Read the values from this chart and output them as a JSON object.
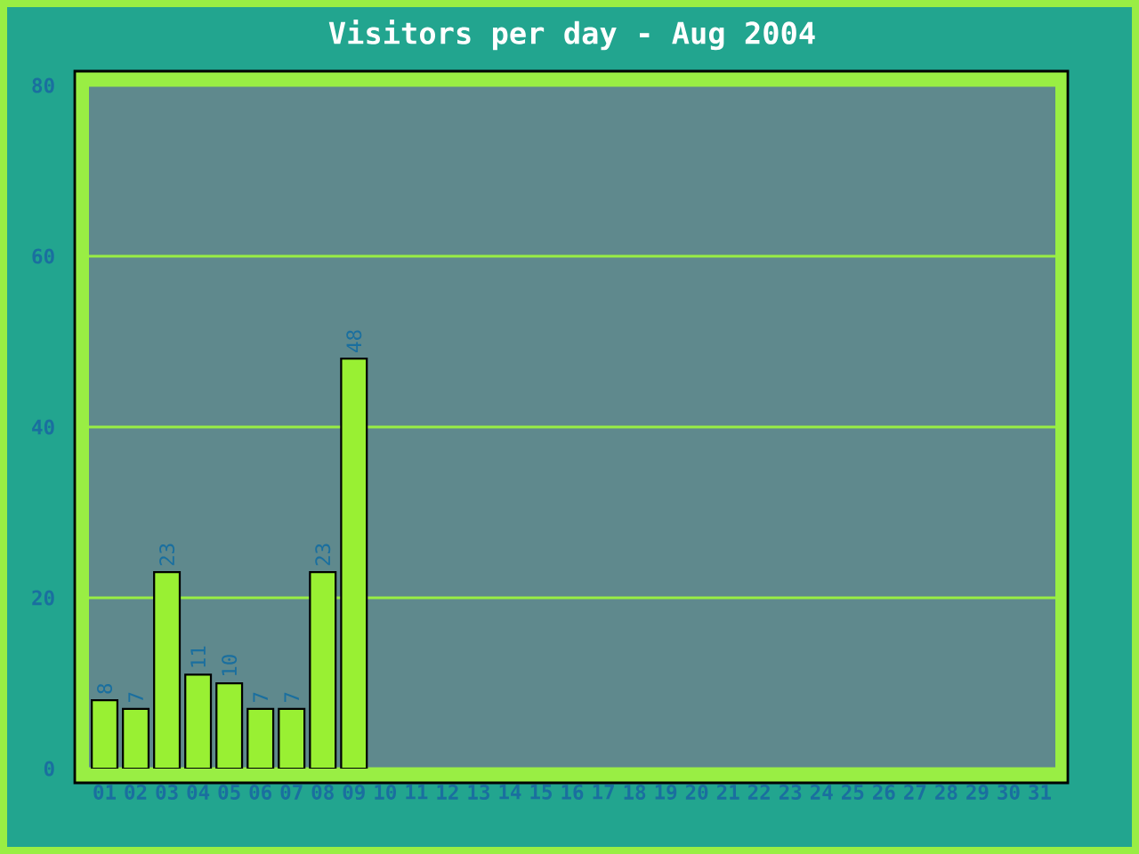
{
  "chart_data": {
    "type": "bar",
    "title": "Visitors per day - Aug 2004",
    "categories": [
      "01",
      "02",
      "03",
      "04",
      "05",
      "06",
      "07",
      "08",
      "09",
      "10",
      "11",
      "12",
      "13",
      "14",
      "15",
      "16",
      "17",
      "18",
      "19",
      "20",
      "21",
      "22",
      "23",
      "24",
      "25",
      "26",
      "27",
      "28",
      "29",
      "30",
      "31"
    ],
    "values": [
      8,
      7,
      23,
      11,
      10,
      7,
      7,
      23,
      48,
      null,
      null,
      null,
      null,
      null,
      null,
      null,
      null,
      null,
      null,
      null,
      null,
      null,
      null,
      null,
      null,
      null,
      null,
      null,
      null,
      null,
      null
    ],
    "value_labels": [
      "8",
      "7",
      "23",
      "11",
      "10",
      "7",
      "7",
      "23",
      "48",
      null,
      null,
      null,
      null,
      null,
      null,
      null,
      null,
      null,
      null,
      null,
      null,
      null,
      null,
      null,
      null,
      null,
      null,
      null,
      null,
      null,
      null
    ],
    "color": "#99f033",
    "ylim": [
      0,
      80
    ],
    "yticks": [
      0,
      20,
      40,
      60,
      80
    ],
    "grid": "y"
  }
}
